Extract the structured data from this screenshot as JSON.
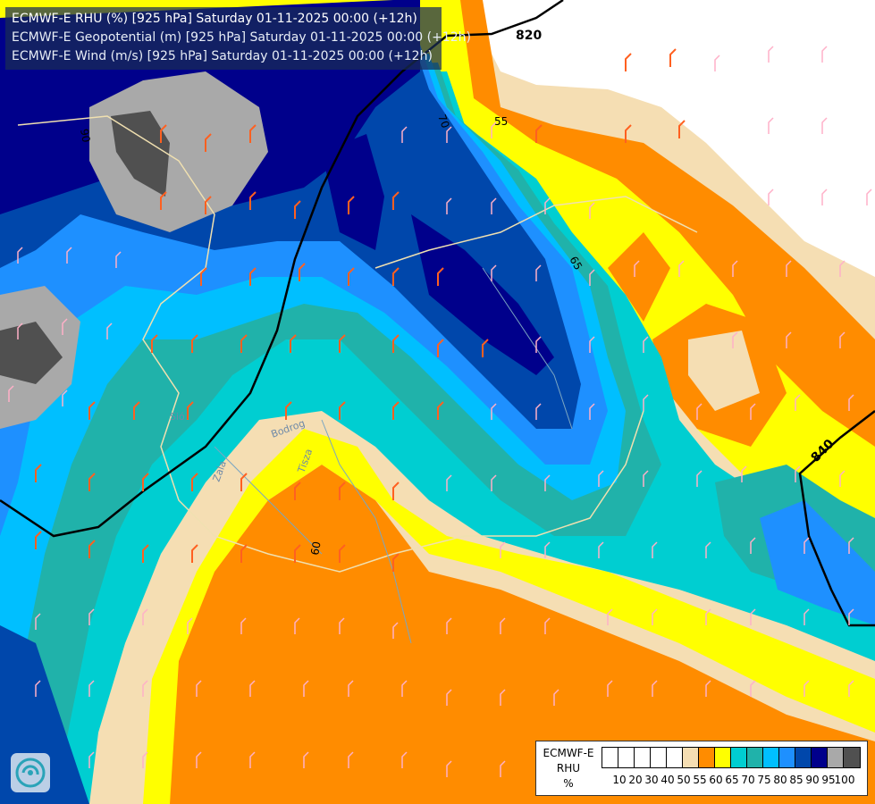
{
  "header": {
    "title_rhu": "ECMWF-E RHU (%) [925 hPa] Saturday 01-11-2025 00:00 (+12h)",
    "title_geo": "ECMWF-E Geopotential (m) [925 hPa] Saturday 01-11-2025 00:00 (+12h)",
    "title_wind": "ECMWF-E Wind (m/s) [925 hPa] Saturday 01-11-2025 00:00 (+12h)"
  },
  "legend": {
    "model": "ECMWF-E",
    "variable": "RHU",
    "unit": "%",
    "colors": [
      "#ffffff",
      "#ffffff",
      "#ffffff",
      "#ffffff",
      "#ffffff",
      "#f5deb3",
      "#ff8c00",
      "#ffff00",
      "#00ced1",
      "#20b2aa",
      "#00bfff",
      "#1e90ff",
      "#0047ab",
      "#00008b",
      "#a9a9a9",
      "#505050"
    ],
    "ticks": [
      "10",
      "20",
      "30",
      "40",
      "50",
      "55",
      "60",
      "65",
      "70",
      "75",
      "80",
      "85",
      "90",
      "95",
      "100"
    ]
  },
  "contours": {
    "geopotential_labels": [
      "820",
      "840"
    ],
    "rhu_labels": [
      "55",
      "60",
      "65",
      "70",
      "90"
    ]
  },
  "rivers": [
    "Tisza",
    "Zala",
    "Sió",
    "Bodrog"
  ]
}
